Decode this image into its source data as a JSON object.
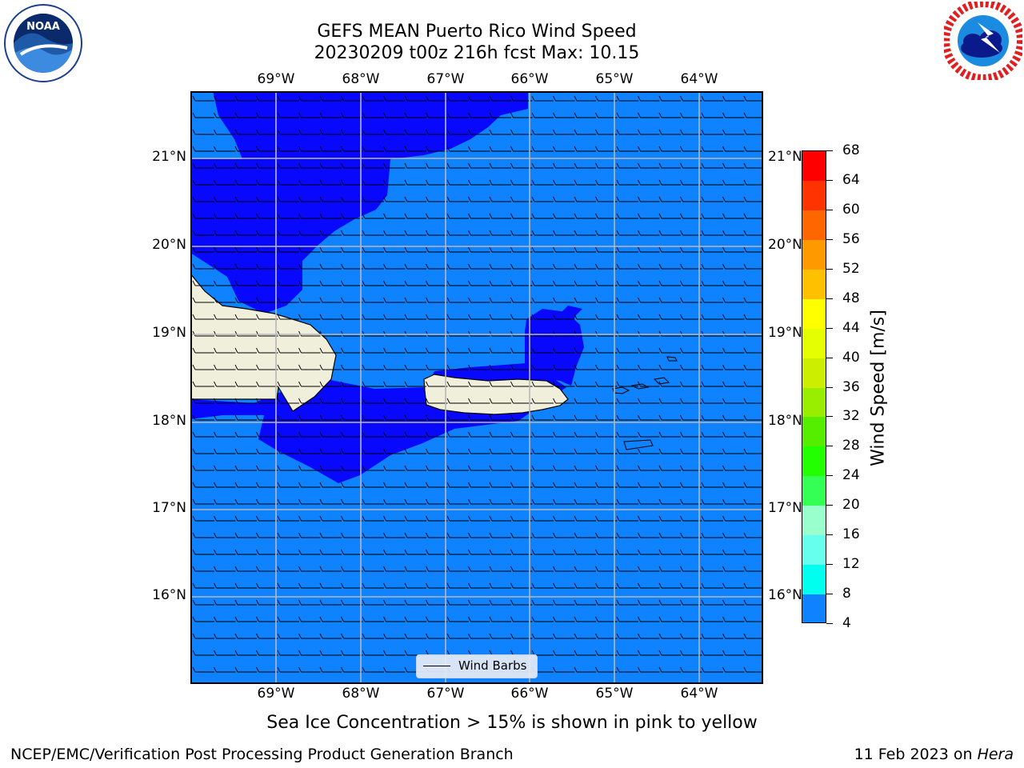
{
  "title": {
    "line1": "GEFS MEAN Puerto Rico Wind Speed",
    "line2": "20230209 t00z 216h fcst   Max: 10.15"
  },
  "logos": {
    "left": {
      "icon": "noaa-logo",
      "text": "NOAA",
      "ring_text": "NATIONAL OCEANIC AND ATMOSPHERIC ADMINISTRATION · U.S. DEPARTMENT OF COMMERCE"
    },
    "right": {
      "icon": "nws-logo",
      "ring_text": "NATIONAL WEATHER SERVICE"
    }
  },
  "map": {
    "lon_labels": [
      "69°W",
      "68°W",
      "67°W",
      "66°W",
      "65°W",
      "64°W"
    ],
    "lat_labels": [
      "21°N",
      "20°N",
      "19°N",
      "18°N",
      "17°N",
      "16°N"
    ],
    "legend_label": "Wind Barbs",
    "ocean_color": "#0f82ff",
    "low_wind_color": "#0808ff",
    "land_color": "#efefdc"
  },
  "colorbar": {
    "label": "Wind Speed [m/s]",
    "ticks": [
      "68",
      "64",
      "60",
      "56",
      "52",
      "48",
      "44",
      "40",
      "36",
      "32",
      "28",
      "24",
      "20",
      "16",
      "12",
      "8",
      "4"
    ],
    "colors": [
      "#ff0000",
      "#ff3300",
      "#ff6600",
      "#ff9900",
      "#ffc000",
      "#ffff00",
      "#e6ff00",
      "#ccee00",
      "#99ee00",
      "#55ee00",
      "#22ff00",
      "#33ff55",
      "#99ffcc",
      "#66ffee",
      "#00ffee",
      "#0f82ff",
      "#0808ff"
    ]
  },
  "caption": "Sea Ice Concentration > 15% is shown in pink to yellow",
  "footer": {
    "left": "NCEP/EMC/Verification Post Processing Product Generation Branch",
    "right_prefix": "11 Feb 2023 on ",
    "right_host": "Hera"
  }
}
